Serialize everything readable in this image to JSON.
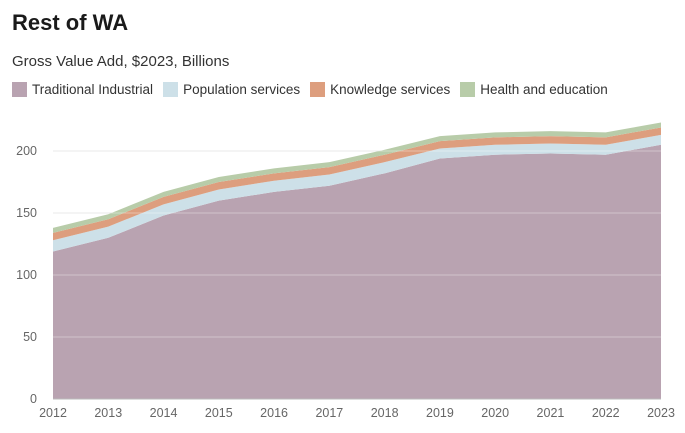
{
  "chart_data": {
    "type": "area",
    "stacked": true,
    "title": "Rest of WA",
    "subtitle": "Gross Value Add, $2023, Billions",
    "x": [
      "2012",
      "2013",
      "2014",
      "2015",
      "2016",
      "2017",
      "2018",
      "2019",
      "2020",
      "2021",
      "2022",
      "2023"
    ],
    "ylim": [
      0,
      225
    ],
    "yticks": [
      0,
      50,
      100,
      150,
      200
    ],
    "grid": true,
    "legend_position": "top",
    "series": [
      {
        "name": "Traditional Industrial",
        "color": "#b9a3b1",
        "values": [
          119,
          130,
          148,
          160,
          167,
          172,
          182,
          194,
          197,
          198,
          197,
          205
        ]
      },
      {
        "name": "Population services",
        "color": "#cde0e8",
        "values": [
          9,
          9,
          9,
          9,
          9,
          9,
          9,
          8,
          8,
          8,
          8,
          8
        ]
      },
      {
        "name": "Knowledge services",
        "color": "#dd9e7e",
        "values": [
          6,
          6,
          6,
          6,
          6,
          6,
          6,
          6,
          6,
          6,
          6,
          6
        ]
      },
      {
        "name": "Health and education",
        "color": "#b8cca9",
        "values": [
          4,
          4,
          4,
          4,
          4,
          4,
          4,
          4,
          4,
          4,
          4,
          4
        ]
      }
    ]
  }
}
